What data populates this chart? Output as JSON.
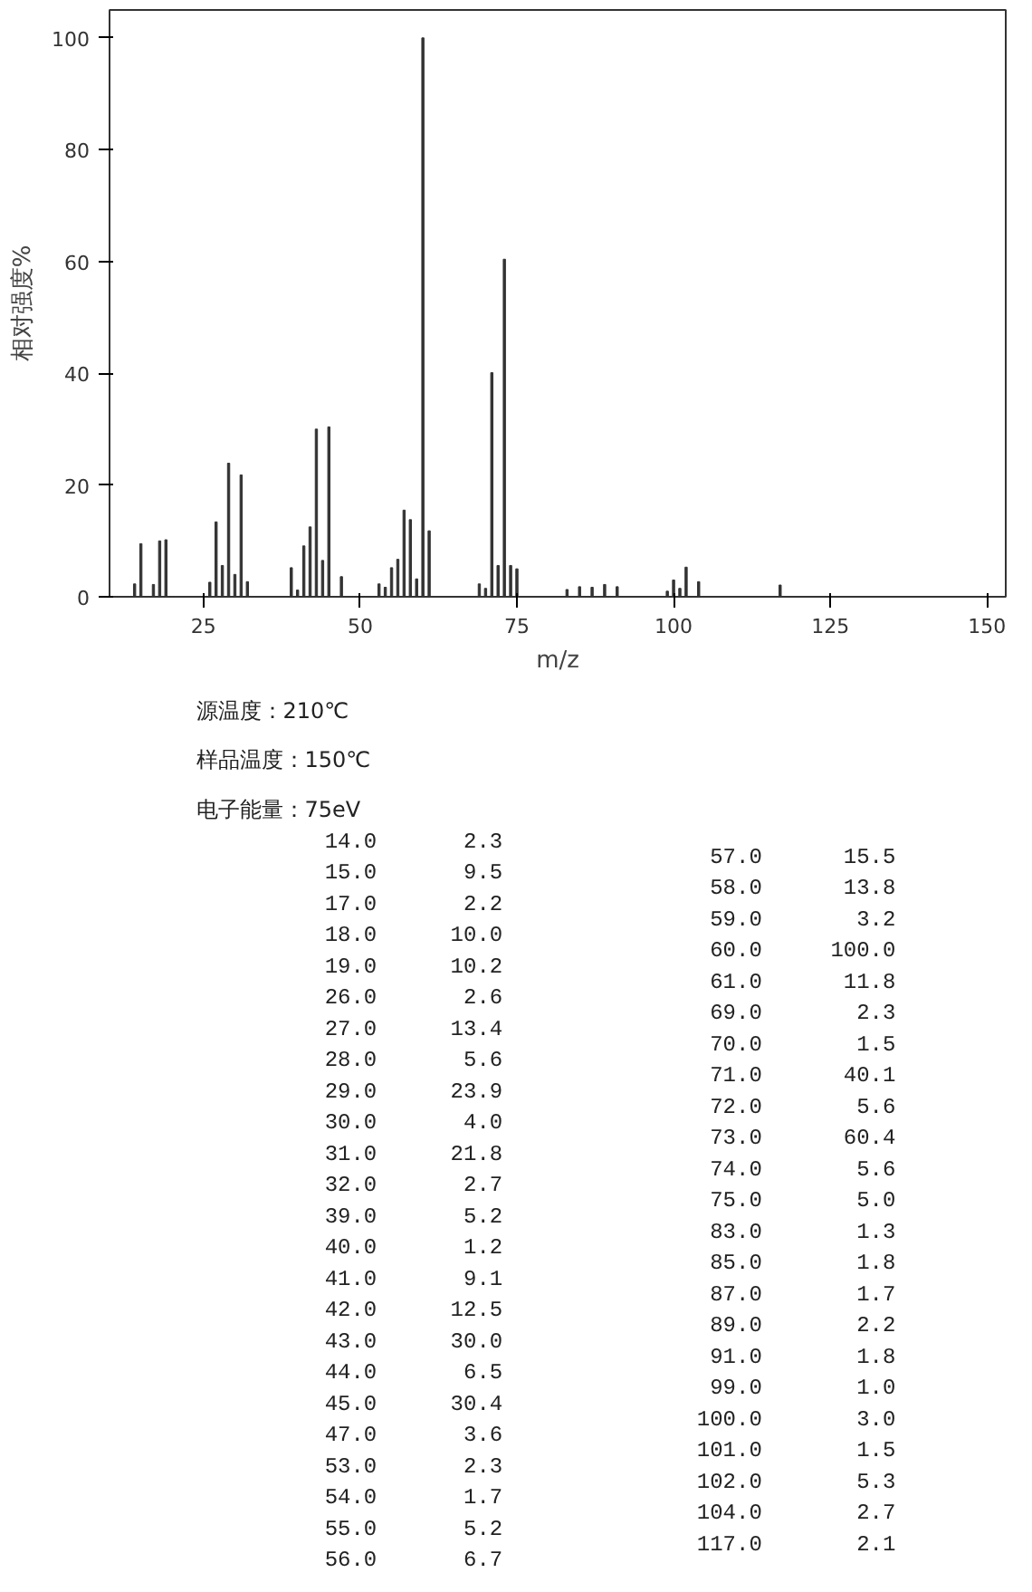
{
  "chart_data": [
    {
      "type": "bar",
      "xlabel": "m/z",
      "ylabel": "相对强度%",
      "color": "#333333",
      "x": [
        14,
        15,
        17,
        18,
        19,
        26,
        27,
        28,
        29,
        30,
        31,
        32,
        39,
        40,
        41,
        42,
        43,
        44,
        45,
        47,
        53,
        54,
        55,
        56,
        57,
        58,
        59,
        60,
        61,
        69,
        70,
        71,
        72,
        73,
        74,
        75,
        83,
        85,
        87,
        89,
        91,
        99,
        100,
        101,
        102,
        104,
        117
      ],
      "values": [
        2.3,
        9.5,
        2.2,
        10.0,
        10.2,
        2.6,
        13.4,
        5.6,
        23.9,
        4.0,
        21.8,
        2.7,
        5.2,
        1.2,
        9.1,
        12.5,
        30.0,
        6.5,
        30.4,
        3.6,
        2.3,
        1.7,
        5.2,
        6.7,
        15.5,
        13.8,
        3.2,
        100.0,
        11.8,
        2.3,
        1.5,
        40.1,
        5.6,
        60.4,
        5.6,
        5.0,
        1.3,
        1.8,
        1.7,
        2.2,
        1.8,
        1.0,
        3.0,
        1.5,
        5.3,
        2.7,
        2.1
      ],
      "xlim": [
        10,
        153
      ],
      "xticks": [
        25,
        50,
        75,
        100,
        125,
        150
      ],
      "ylim": [
        0,
        105
      ],
      "yticks": [
        0,
        20,
        40,
        60,
        80,
        100
      ]
    },
    {
      "type": "other",
      "annotations": [
        "源温度：210℃",
        "样品温度：150℃",
        "电子能量：75eV"
      ],
      "categories": [
        "14.0",
        "15.0",
        "17.0",
        "18.0",
        "19.0",
        "26.0",
        "27.0",
        "28.0",
        "29.0",
        "30.0",
        "31.0",
        "32.0",
        "39.0",
        "40.0",
        "41.0",
        "42.0",
        "43.0",
        "44.0",
        "45.0",
        "47.0",
        "53.0",
        "54.0",
        "55.0",
        "56.0",
        "57.0",
        "58.0",
        "59.0",
        "60.0",
        "61.0",
        "69.0",
        "70.0",
        "71.0",
        "72.0",
        "73.0",
        "74.0",
        "75.0",
        "83.0",
        "85.0",
        "87.0",
        "89.0",
        "91.0",
        "99.0",
        "100.0",
        "101.0",
        "102.0",
        "104.0",
        "117.0"
      ],
      "value_labels": [
        "2.3",
        "9.5",
        "2.2",
        "10.0",
        "10.2",
        "2.6",
        "13.4",
        "5.6",
        "23.9",
        "4.0",
        "21.8",
        "2.7",
        "5.2",
        "1.2",
        "9.1",
        "12.5",
        "30.0",
        "6.5",
        "30.4",
        "3.6",
        "2.3",
        "1.7",
        "5.2",
        "6.7",
        "15.5",
        "13.8",
        "3.2",
        "100.0",
        "11.8",
        "2.3",
        "1.5",
        "40.1",
        "5.6",
        "60.4",
        "5.6",
        "5.0",
        "1.3",
        "1.8",
        "1.7",
        "2.2",
        "1.8",
        "1.0",
        "3.0",
        "1.5",
        "5.3",
        "2.7",
        "2.1"
      ]
    }
  ]
}
